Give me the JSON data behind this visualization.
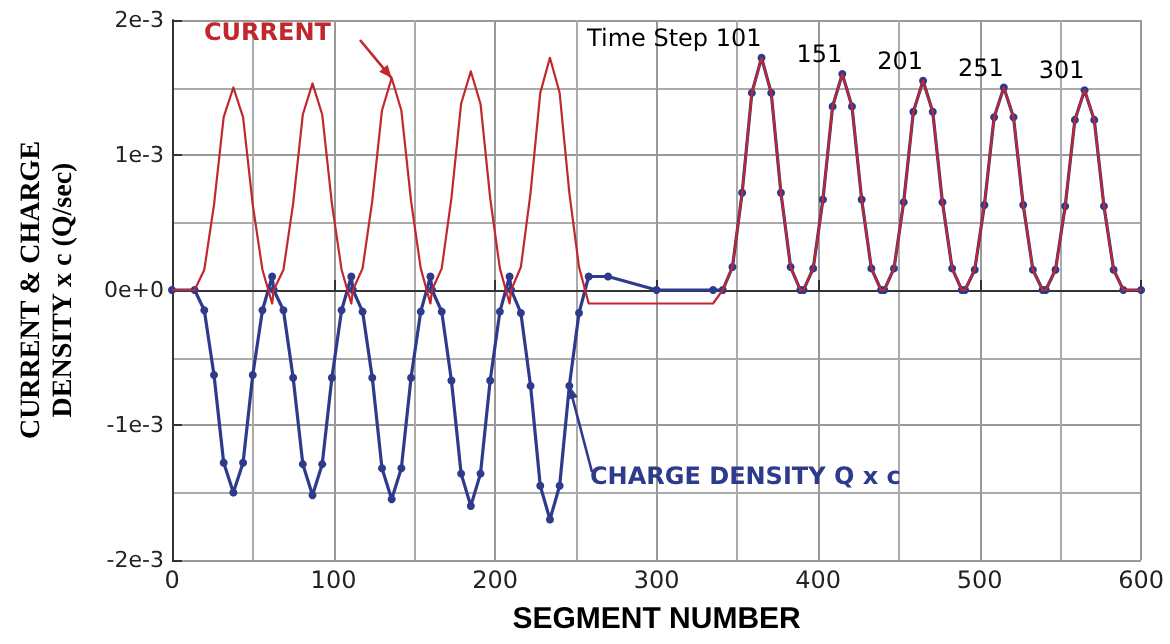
{
  "chart_data": {
    "type": "line",
    "xlabel": "SEGMENT NUMBER",
    "ylabel": "CURRENT & CHARGE\nDENSITY x c (Q/sec)",
    "xlim": [
      0,
      600
    ],
    "xticks": [
      0,
      100,
      200,
      300,
      400,
      500,
      600
    ],
    "ylim": [
      -0.002,
      0.002
    ],
    "yticks": [
      {
        "value": -0.002,
        "label": "-2e-3"
      },
      {
        "value": -0.001,
        "label": "-1e-3"
      },
      {
        "value": 0,
        "label": "0e+0"
      },
      {
        "value": 0.001,
        "label": "1e-3"
      },
      {
        "value": 0.002,
        "label": "2e-3"
      }
    ],
    "grid": true,
    "line_style": "solid",
    "x": [
      0,
      14,
      20,
      26,
      32,
      38,
      44,
      50,
      56,
      62,
      63,
      69,
      75,
      81,
      87,
      93,
      99,
      105,
      111,
      112,
      118,
      124,
      130,
      136,
      142,
      148,
      154,
      160,
      161,
      167,
      173,
      179,
      185,
      191,
      197,
      203,
      209,
      210,
      216,
      222,
      228,
      234,
      240,
      246,
      252,
      258,
      270,
      300,
      335,
      341,
      347,
      353,
      359,
      365,
      371,
      377,
      383,
      389,
      391,
      397,
      403,
      409,
      415,
      421,
      427,
      433,
      439,
      441,
      447,
      453,
      459,
      465,
      471,
      477,
      483,
      489,
      491,
      497,
      503,
      509,
      515,
      521,
      527,
      533,
      539,
      541,
      547,
      553,
      559,
      565,
      571,
      577,
      583,
      589,
      600
    ],
    "series": [
      {
        "color": "#c0282d",
        "marker": "none",
        "values": [
          0,
          0,
          0.00015,
          0.00063,
          0.00128,
          0.0015,
          0.00128,
          0.00063,
          0.00015,
          -0.0001,
          0,
          0.00015,
          0.00064,
          0.0013,
          0.00153,
          0.0013,
          0.00064,
          0.00015,
          -0.0001,
          0,
          0.00016,
          0.00066,
          0.00133,
          0.00157,
          0.00133,
          0.00066,
          0.00016,
          -0.0001,
          0,
          0.00016,
          0.00068,
          0.00138,
          0.00162,
          0.00138,
          0.00068,
          0.00016,
          -0.0001,
          0,
          0.00017,
          0.00072,
          0.00146,
          0.00172,
          0.00146,
          0.00072,
          0.00017,
          -0.0001,
          -0.0001,
          -0.0001,
          -0.0001,
          0,
          0.00017,
          0.00072,
          0.00146,
          0.00172,
          0.00146,
          0.00072,
          0.00017,
          0,
          0,
          0.00016,
          0.00067,
          0.00136,
          0.0016,
          0.00136,
          0.00067,
          0.00016,
          0,
          0,
          0.00016,
          0.00065,
          0.00132,
          0.00155,
          0.00132,
          0.00065,
          0.00016,
          0,
          0,
          0.00015,
          0.00063,
          0.00128,
          0.0015,
          0.00128,
          0.00063,
          0.00015,
          0,
          0,
          0.00015,
          0.00062,
          0.00126,
          0.00148,
          0.00126,
          0.00062,
          0.00015,
          0,
          0
        ]
      },
      {
        "color": "#2e3a8c",
        "marker": "circle",
        "values": [
          0,
          0,
          -0.00015,
          -0.00063,
          -0.00128,
          -0.0015,
          -0.00128,
          -0.00063,
          -0.00015,
          0.0001,
          0,
          -0.00015,
          -0.00065,
          -0.00129,
          -0.00152,
          -0.00129,
          -0.00065,
          -0.00015,
          0.0001,
          0,
          -0.00016,
          -0.00065,
          -0.00132,
          -0.00155,
          -0.00132,
          -0.00065,
          -0.00016,
          0.0001,
          0,
          -0.00016,
          -0.00067,
          -0.00136,
          -0.0016,
          -0.00136,
          -0.00067,
          -0.00016,
          0.0001,
          0,
          -0.00017,
          -0.00071,
          -0.00145,
          -0.0017,
          -0.00145,
          -0.00071,
          -0.00017,
          0.0001,
          0.0001,
          0,
          0,
          0,
          0.00017,
          0.00072,
          0.00146,
          0.00172,
          0.00146,
          0.00072,
          0.00017,
          0,
          0,
          0.00016,
          0.00067,
          0.00136,
          0.0016,
          0.00136,
          0.00067,
          0.00016,
          0,
          0,
          0.00016,
          0.00065,
          0.00132,
          0.00155,
          0.00132,
          0.00065,
          0.00016,
          0,
          0,
          0.00015,
          0.00063,
          0.00128,
          0.0015,
          0.00128,
          0.00063,
          0.00015,
          0,
          0,
          0.00015,
          0.00062,
          0.00126,
          0.00148,
          0.00126,
          0.00062,
          0.00015,
          0,
          0
        ]
      }
    ],
    "annotations": [
      {
        "text": "CURRENT",
        "x": 136,
        "y": 0.00157
      },
      {
        "text": "CHARGE DENSITY Q x c",
        "x": 246,
        "y": -0.00071
      },
      {
        "text": "Time Step 101",
        "x": 365,
        "y": 0.00172
      },
      {
        "text": "151",
        "x": 415,
        "y": 0.0016
      },
      {
        "text": "201",
        "x": 465,
        "y": 0.00155
      },
      {
        "text": "251",
        "x": 515,
        "y": 0.0015
      },
      {
        "text": "301",
        "x": 565,
        "y": 0.00148
      }
    ]
  }
}
